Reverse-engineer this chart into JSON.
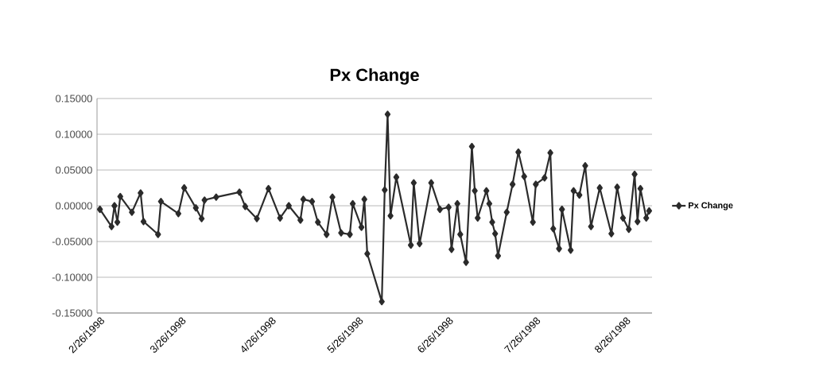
{
  "chart_data": {
    "type": "line",
    "title": "Px Change",
    "x": [
      "1998-02-26",
      "1998-03-02",
      "1998-03-03",
      "1998-03-04",
      "1998-03-05",
      "1998-03-09",
      "1998-03-12",
      "1998-03-13",
      "1998-03-18",
      "1998-03-19",
      "1998-03-25",
      "1998-03-27",
      "1998-03-31",
      "1998-04-02",
      "1998-04-03",
      "1998-04-07",
      "1998-04-15",
      "1998-04-17",
      "1998-04-21",
      "1998-04-25",
      "1998-04-29",
      "1998-05-02",
      "1998-05-06",
      "1998-05-07",
      "1998-05-10",
      "1998-05-12",
      "1998-05-15",
      "1998-05-17",
      "1998-05-20",
      "1998-05-23",
      "1998-05-24",
      "1998-05-27",
      "1998-05-28",
      "1998-05-29",
      "1998-06-03",
      "1998-06-04",
      "1998-06-05",
      "1998-06-06",
      "1998-06-08",
      "1998-06-13",
      "1998-06-14",
      "1998-06-16",
      "1998-06-20",
      "1998-06-23",
      "1998-06-26",
      "1998-06-27",
      "1998-06-29",
      "1998-06-30",
      "1998-07-02",
      "1998-07-04",
      "1998-07-05",
      "1998-07-06",
      "1998-07-09",
      "1998-07-10",
      "1998-07-11",
      "1998-07-12",
      "1998-07-13",
      "1998-07-16",
      "1998-07-18",
      "1998-07-20",
      "1998-07-22",
      "1998-07-25",
      "1998-07-26",
      "1998-07-29",
      "1998-07-31",
      "1998-08-01",
      "1998-08-03",
      "1998-08-04",
      "1998-08-07",
      "1998-08-08",
      "1998-08-10",
      "1998-08-12",
      "1998-08-14",
      "1998-08-17",
      "1998-08-21",
      "1998-08-23",
      "1998-08-25",
      "1998-08-27",
      "1998-08-29",
      "1998-08-30",
      "1998-08-31",
      "1998-09-02",
      "1998-09-03"
    ],
    "series": [
      {
        "name": "Px Change",
        "color": "#2b2b2b",
        "values": [
          -0.005,
          -0.029,
          0.0,
          -0.023,
          0.013,
          -0.009,
          0.018,
          -0.022,
          -0.04,
          0.006,
          -0.011,
          0.025,
          -0.003,
          -0.018,
          0.008,
          0.012,
          0.019,
          -0.001,
          -0.018,
          0.024,
          -0.017,
          0.0,
          -0.02,
          0.009,
          0.006,
          -0.023,
          -0.04,
          0.012,
          -0.038,
          -0.04,
          0.003,
          -0.03,
          0.009,
          -0.067,
          -0.134,
          0.022,
          0.128,
          -0.014,
          0.04,
          -0.055,
          0.032,
          -0.053,
          0.032,
          -0.005,
          -0.002,
          -0.061,
          0.003,
          -0.04,
          -0.079,
          0.083,
          0.021,
          -0.017,
          0.021,
          0.003,
          -0.023,
          -0.039,
          -0.07,
          -0.009,
          0.03,
          0.075,
          0.041,
          -0.023,
          0.03,
          0.039,
          0.074,
          -0.032,
          -0.06,
          -0.005,
          -0.062,
          0.021,
          0.015,
          0.056,
          -0.029,
          0.025,
          -0.039,
          0.026,
          -0.017,
          -0.033,
          0.044,
          -0.022,
          0.024,
          -0.017,
          -0.007
        ]
      }
    ],
    "xlim": [
      "1998-02-25",
      "1998-09-04"
    ],
    "xticks": [
      {
        "value": "1998-02-26",
        "label": "2/26/1998"
      },
      {
        "value": "1998-03-26",
        "label": "3/26/1998"
      },
      {
        "value": "1998-04-26",
        "label": "4/26/1998"
      },
      {
        "value": "1998-05-26",
        "label": "5/26/1998"
      },
      {
        "value": "1998-06-26",
        "label": "6/26/1998"
      },
      {
        "value": "1998-07-26",
        "label": "7/26/1998"
      },
      {
        "value": "1998-08-26",
        "label": "8/26/1998"
      }
    ],
    "ylim": [
      -0.15,
      0.15
    ],
    "yticks": [
      {
        "value": -0.15,
        "label": "-0.15000"
      },
      {
        "value": -0.1,
        "label": "-0.10000"
      },
      {
        "value": -0.05,
        "label": "-0.05000"
      },
      {
        "value": 0,
        "label": "0.00000"
      },
      {
        "value": 0.05,
        "label": "0.05000"
      },
      {
        "value": 0.1,
        "label": "0.10000"
      },
      {
        "value": 0.15,
        "label": "0.15000"
      }
    ],
    "grid": "y",
    "legend": "right",
    "marker": "diamond",
    "line_style": "solid"
  }
}
